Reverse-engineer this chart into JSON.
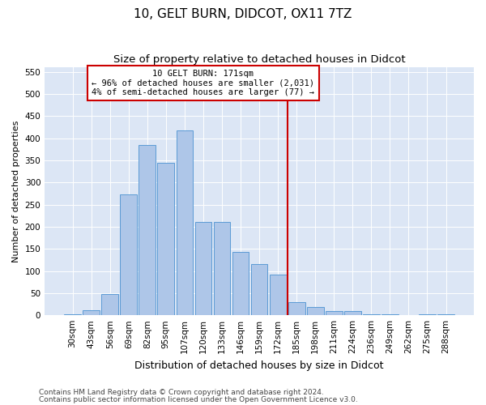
{
  "title1": "10, GELT BURN, DIDCOT, OX11 7TZ",
  "title2": "Size of property relative to detached houses in Didcot",
  "xlabel": "Distribution of detached houses by size in Didcot",
  "ylabel": "Number of detached properties",
  "categories": [
    "30sqm",
    "43sqm",
    "56sqm",
    "69sqm",
    "82sqm",
    "95sqm",
    "107sqm",
    "120sqm",
    "133sqm",
    "146sqm",
    "159sqm",
    "172sqm",
    "185sqm",
    "198sqm",
    "211sqm",
    "224sqm",
    "236sqm",
    "249sqm",
    "262sqm",
    "275sqm",
    "288sqm"
  ],
  "values": [
    3,
    11,
    48,
    272,
    385,
    344,
    418,
    211,
    211,
    143,
    116,
    91,
    30,
    18,
    10,
    10,
    3,
    2,
    1,
    3,
    2
  ],
  "bar_color": "#aec6e8",
  "bar_edge_color": "#5b9bd5",
  "vline_color": "#cc0000",
  "vline_index": 11,
  "annotation_line1": "10 GELT BURN: 171sqm",
  "annotation_line2": "← 96% of detached houses are smaller (2,031)",
  "annotation_line3": "4% of semi-detached houses are larger (77) →",
  "annotation_box_color": "#cc0000",
  "ylim": [
    0,
    560
  ],
  "yticks": [
    0,
    50,
    100,
    150,
    200,
    250,
    300,
    350,
    400,
    450,
    500,
    550
  ],
  "bg_color": "#dce6f5",
  "footnote1": "Contains HM Land Registry data © Crown copyright and database right 2024.",
  "footnote2": "Contains public sector information licensed under the Open Government Licence v3.0.",
  "title1_fontsize": 11,
  "title2_fontsize": 9.5,
  "xlabel_fontsize": 9,
  "ylabel_fontsize": 8,
  "tick_fontsize": 7.5,
  "footnote_fontsize": 6.5,
  "ann_fontsize": 7.5
}
